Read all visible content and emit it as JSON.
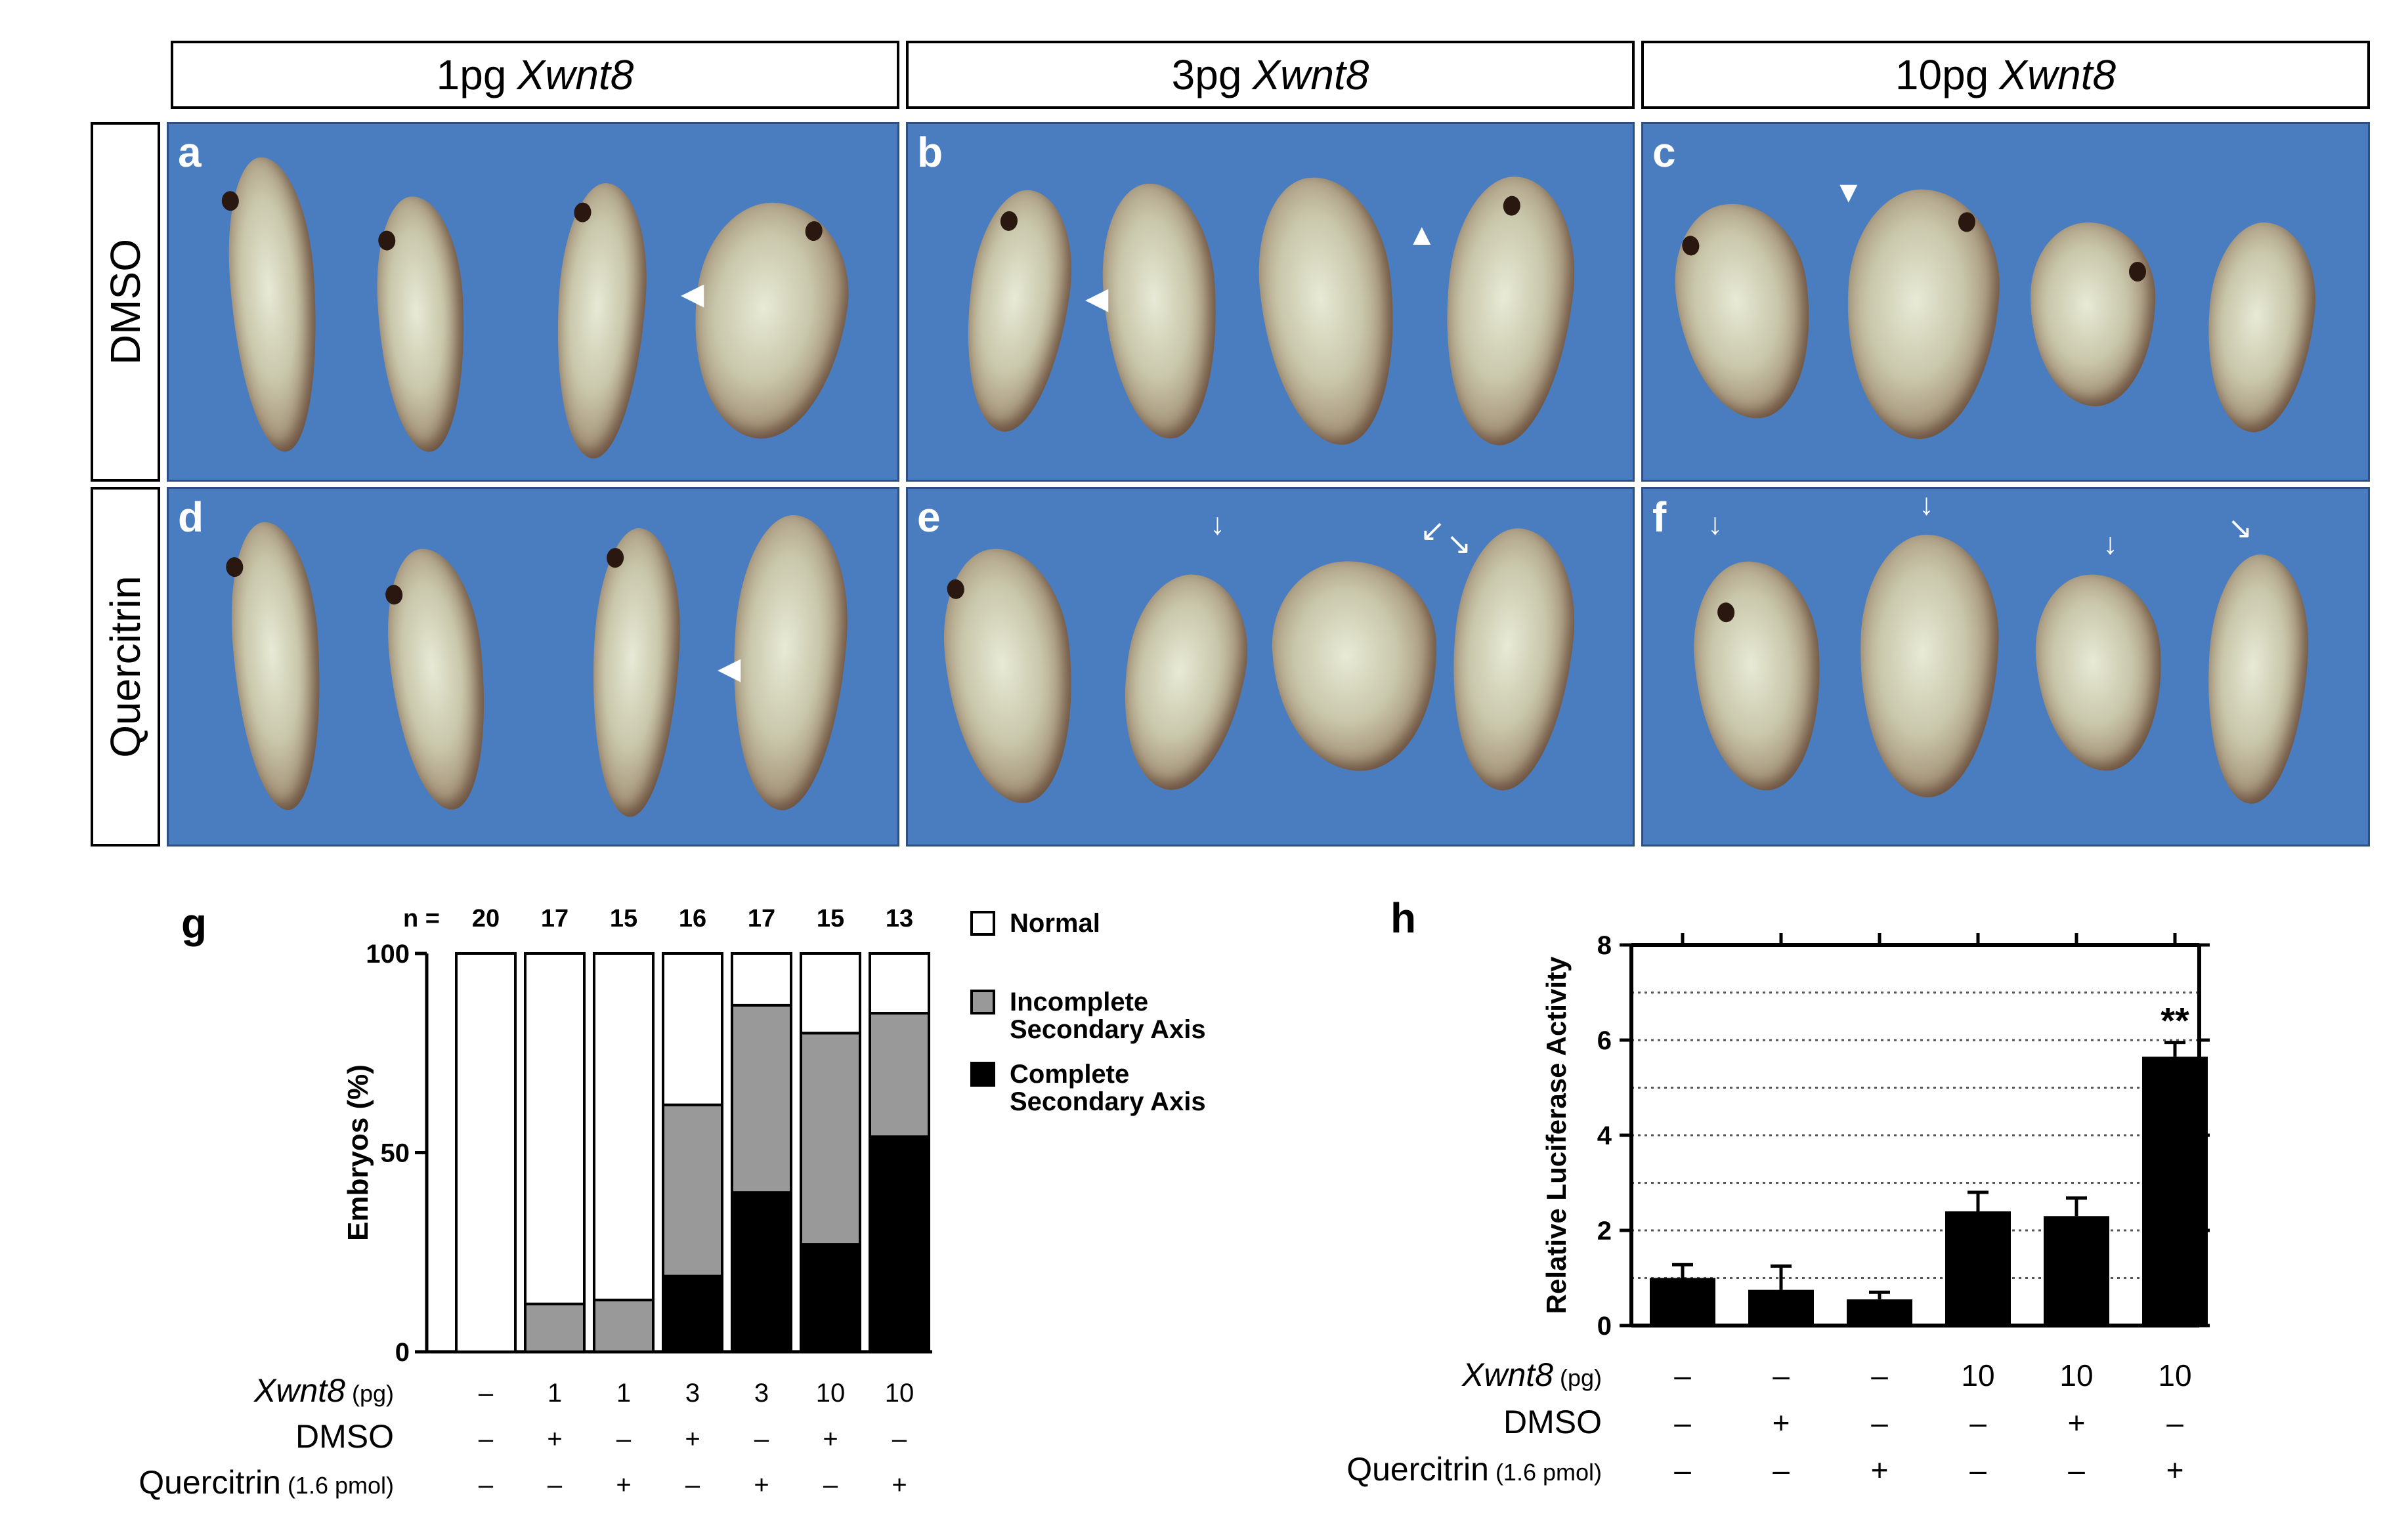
{
  "column_headers": [
    {
      "dose": "1pg",
      "gene": "Xwnt8"
    },
    {
      "dose": "3pg",
      "gene": "Xwnt8"
    },
    {
      "dose": "10pg",
      "gene": "Xwnt8"
    }
  ],
  "row_headers": [
    "DMSO",
    "Quercitrin"
  ],
  "panel_labels": [
    "a",
    "b",
    "c",
    "d",
    "e",
    "f"
  ],
  "chart_labels": {
    "g": "g",
    "h": "h"
  },
  "chart_data": [
    {
      "type": "bar",
      "stacked": true,
      "ylabel": "Embryos (%)",
      "ylim": [
        0,
        100
      ],
      "yticks": [
        "0",
        "50",
        "100"
      ],
      "n_prefix": "n =",
      "n": [
        "20",
        "17",
        "15",
        "16",
        "17",
        "15",
        "13"
      ],
      "legend": [
        "Normal",
        "Incomplete Secondary Axis",
        "Complete Secondary Axis"
      ],
      "legend_lines": [
        [
          "Normal"
        ],
        [
          "Incomplete",
          "Secondary Axis"
        ],
        [
          "Complete",
          "Secondary Axis"
        ]
      ],
      "series": [
        {
          "name": "Complete Secondary Axis",
          "color": "#000000",
          "values": [
            0,
            0,
            0,
            19,
            40,
            27,
            54
          ]
        },
        {
          "name": "Incomplete Secondary Axis",
          "color": "#999999",
          "values": [
            0,
            12,
            13,
            43,
            47,
            53,
            31
          ]
        },
        {
          "name": "Normal",
          "color": "#ffffff",
          "values": [
            100,
            88,
            87,
            38,
            13,
            20,
            15
          ]
        }
      ],
      "condition_rows": [
        {
          "label": "Xwnt8",
          "unit": "(pg)",
          "values": [
            "–",
            "1",
            "1",
            "3",
            "3",
            "10",
            "10"
          ]
        },
        {
          "label": "DMSO",
          "unit": "",
          "values": [
            "–",
            "+",
            "–",
            "+",
            "–",
            "+",
            "–"
          ]
        },
        {
          "label": "Quercitrin",
          "unit": "(1.6 pmol)",
          "values": [
            "–",
            "–",
            "+",
            "–",
            "+",
            "–",
            "+"
          ]
        }
      ]
    },
    {
      "type": "bar",
      "ylabel": "Relative Luciferase Activity",
      "ylim": [
        0,
        8
      ],
      "yticks": [
        "0",
        "2",
        "4",
        "6",
        "8"
      ],
      "values": [
        1.0,
        0.75,
        0.55,
        2.4,
        2.3,
        5.65
      ],
      "errors": [
        0.28,
        0.5,
        0.15,
        0.4,
        0.38,
        0.3
      ],
      "significance": [
        "",
        "",
        "",
        "",
        "",
        "**"
      ],
      "condition_rows": [
        {
          "label": "Xwnt8",
          "unit": "(pg)",
          "values": [
            "–",
            "–",
            "–",
            "10",
            "10",
            "10"
          ]
        },
        {
          "label": "DMSO",
          "unit": "",
          "values": [
            "–",
            "+",
            "–",
            "–",
            "+",
            "–"
          ]
        },
        {
          "label": "Quercitrin",
          "unit": "(1.6 pmol)",
          "values": [
            "–",
            "–",
            "+",
            "–",
            "–",
            "+"
          ]
        }
      ]
    }
  ]
}
